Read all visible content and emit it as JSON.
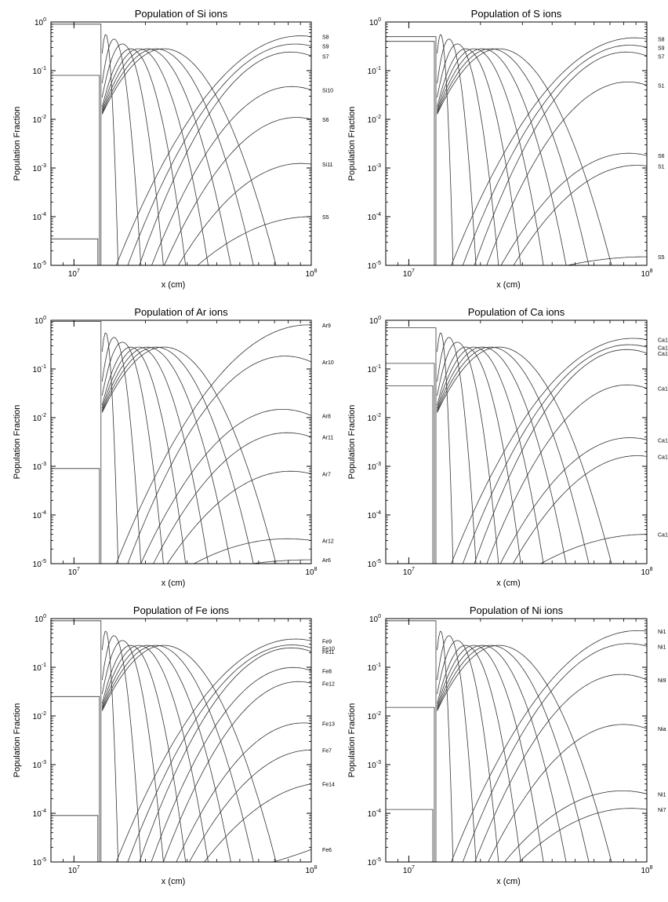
{
  "chart_data": [
    {
      "type": "line",
      "title": "Population of Si ions",
      "xlabel": "x (cm)",
      "ylabel": "Population Fraction",
      "xscale": "log",
      "yscale": "log",
      "xlim": [
        8000000,
        100000000
      ],
      "ylim": [
        1e-05,
        1
      ],
      "x_ticks": [
        "10",
        "10"
      ],
      "x_tick_exponents": [
        "7",
        "8"
      ],
      "y_ticks": [
        "10",
        "10",
        "10",
        "10",
        "10",
        "10"
      ],
      "y_tick_exponents": [
        "0",
        "-1",
        "-2",
        "-3",
        "-4",
        "-5"
      ],
      "series": [
        {
          "name": "S8",
          "values_at_edge": 0.5
        },
        {
          "name": "S9",
          "values_at_edge": 0.32
        },
        {
          "name": "S7",
          "values_at_edge": 0.2
        },
        {
          "name": "Si10",
          "values_at_edge": 0.04
        },
        {
          "name": "S6",
          "values_at_edge": 0.01
        },
        {
          "name": "Si11",
          "values_at_edge": 0.0012
        },
        {
          "name": "S5",
          "values_at_edge": 0.0001
        }
      ],
      "initial_levels": [
        0.9,
        0.08,
        3.5e-05
      ],
      "shock_x": 13000000
    },
    {
      "type": "line",
      "title": "Population of S ions",
      "xlabel": "x (cm)",
      "ylabel": "Population Fraction",
      "xscale": "log",
      "yscale": "log",
      "xlim": [
        8000000,
        100000000
      ],
      "ylim": [
        1e-05,
        1
      ],
      "x_ticks": [
        "10",
        "10"
      ],
      "x_tick_exponents": [
        "7",
        "8"
      ],
      "y_ticks": [
        "10",
        "10",
        "10",
        "10",
        "10",
        "10"
      ],
      "y_tick_exponents": [
        "0",
        "-1",
        "-2",
        "-3",
        "-4",
        "-5"
      ],
      "series": [
        {
          "name": "S8",
          "values_at_edge": 0.45
        },
        {
          "name": "S9",
          "values_at_edge": 0.3
        },
        {
          "name": "S7",
          "values_at_edge": 0.2
        },
        {
          "name": "S1",
          "values_at_edge": 0.05
        },
        {
          "name": "S6",
          "values_at_edge": 0.0018
        },
        {
          "name": "S1",
          "values_at_edge": 0.0011
        },
        {
          "name": "S5",
          "values_at_edge": 1.5e-05
        }
      ],
      "initial_levels": [
        0.5,
        0.4,
        1e-05
      ],
      "shock_x": 13000000
    },
    {
      "type": "line",
      "title": "Population of Ar ions",
      "xlabel": "x (cm)",
      "ylabel": "Population Fraction",
      "xscale": "log",
      "yscale": "log",
      "xlim": [
        8000000,
        100000000
      ],
      "ylim": [
        1e-05,
        1
      ],
      "x_ticks": [
        "10",
        "10"
      ],
      "x_tick_exponents": [
        "7",
        "8"
      ],
      "y_ticks": [
        "10",
        "10",
        "10",
        "10",
        "10",
        "10"
      ],
      "y_tick_exponents": [
        "0",
        "-1",
        "-2",
        "-3",
        "-4",
        "-5"
      ],
      "series": [
        {
          "name": "Ar9",
          "values_at_edge": 0.8
        },
        {
          "name": "Ar10",
          "values_at_edge": 0.14
        },
        {
          "name": "Ar8",
          "values_at_edge": 0.011
        },
        {
          "name": "Ar11",
          "values_at_edge": 0.004
        },
        {
          "name": "Ar7",
          "values_at_edge": 0.0007
        },
        {
          "name": "Ar12",
          "values_at_edge": 3e-05
        },
        {
          "name": "Ar6",
          "values_at_edge": 1.2e-05
        }
      ],
      "initial_levels": [
        0.95,
        0.0009
      ],
      "shock_x": 13000000
    },
    {
      "type": "line",
      "title": "Population of Ca ions",
      "xlabel": "x (cm)",
      "ylabel": "Population Fraction",
      "xscale": "log",
      "yscale": "log",
      "xlim": [
        8000000,
        100000000
      ],
      "ylim": [
        1e-05,
        1
      ],
      "x_ticks": [
        "10",
        "10"
      ],
      "x_tick_exponents": [
        "7",
        "8"
      ],
      "y_ticks": [
        "10",
        "10",
        "10",
        "10",
        "10",
        "10"
      ],
      "y_tick_exponents": [
        "0",
        "-1",
        "-2",
        "-3",
        "-4",
        "-5"
      ],
      "series": [
        {
          "name": "Ca1",
          "values_at_edge": 0.4
        },
        {
          "name": "Ca1",
          "values_at_edge": 0.28
        },
        {
          "name": "Ca1",
          "values_at_edge": 0.21
        },
        {
          "name": "Ca1",
          "values_at_edge": 0.04
        },
        {
          "name": "Ca1",
          "values_at_edge": 0.0035
        },
        {
          "name": "Ca1",
          "values_at_edge": 0.0016
        },
        {
          "name": "Ca1",
          "values_at_edge": 4e-05
        }
      ],
      "initial_levels": [
        0.7,
        0.13,
        0.045
      ],
      "shock_x": 13000000
    },
    {
      "type": "line",
      "title": "Population of Fe ions",
      "xlabel": "x (cm)",
      "ylabel": "Population Fraction",
      "xscale": "log",
      "yscale": "log",
      "xlim": [
        8000000,
        100000000
      ],
      "ylim": [
        1e-05,
        1
      ],
      "x_ticks": [
        "10",
        "10"
      ],
      "x_tick_exponents": [
        "7",
        "8"
      ],
      "y_ticks": [
        "10",
        "10",
        "10",
        "10",
        "10",
        "10"
      ],
      "y_tick_exponents": [
        "0",
        "-1",
        "-2",
        "-3",
        "-4",
        "-5"
      ],
      "series": [
        {
          "name": "Fe9",
          "values_at_edge": 0.35
        },
        {
          "name": "Fe10",
          "values_at_edge": 0.25
        },
        {
          "name": "Fe11",
          "values_at_edge": 0.21
        },
        {
          "name": "Fe8",
          "values_at_edge": 0.085
        },
        {
          "name": "Fe12",
          "values_at_edge": 0.047
        },
        {
          "name": "Fe13",
          "values_at_edge": 0.007
        },
        {
          "name": "Fe7",
          "values_at_edge": 0.002
        },
        {
          "name": "Fe14",
          "values_at_edge": 0.0004
        },
        {
          "name": "Fe6",
          "values_at_edge": 1.8e-05
        }
      ],
      "initial_levels": [
        0.9,
        0.025,
        9e-05
      ],
      "shock_x": 13000000
    },
    {
      "type": "line",
      "title": "Population of Ni ions",
      "xlabel": "x (cm)",
      "ylabel": "Population Fraction",
      "xscale": "log",
      "yscale": "log",
      "xlim": [
        8000000,
        100000000
      ],
      "ylim": [
        1e-05,
        1
      ],
      "x_ticks": [
        "10",
        "10"
      ],
      "x_tick_exponents": [
        "7",
        "8"
      ],
      "y_ticks": [
        "10",
        "10",
        "10",
        "10",
        "10",
        "10"
      ],
      "y_tick_exponents": [
        "0",
        "-1",
        "-2",
        "-3",
        "-4",
        "-5"
      ],
      "series": [
        {
          "name": "Ni1",
          "values_at_edge": 0.55
        },
        {
          "name": "Ni1",
          "values_at_edge": 0.27
        },
        {
          "name": "Ni9",
          "values_at_edge": 0.055
        },
        {
          "name": "Nia",
          "values_at_edge": 0.0055
        },
        {
          "name": "Ni1",
          "values_at_edge": 0.00025
        },
        {
          "name": "Ni7",
          "values_at_edge": 0.00012
        }
      ],
      "initial_levels": [
        0.9,
        0.015,
        0.00012
      ],
      "shock_x": 13000000
    }
  ]
}
